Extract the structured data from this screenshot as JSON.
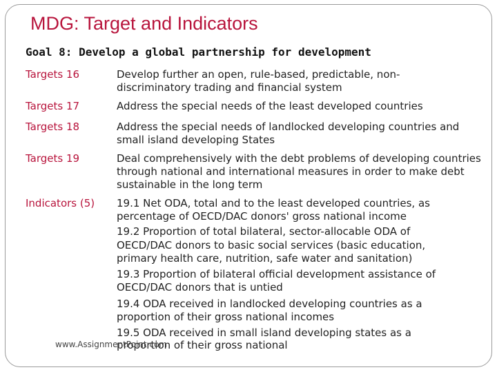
{
  "title": "MDG: Target and Indicators",
  "goal": "Goal 8: Develop a global partnership for development",
  "targets": [
    {
      "label": "Targets 16",
      "text": "Develop further an open, rule-based, predictable, non-discriminatory trading and financial system"
    },
    {
      "label": "Targets 17",
      "text": "Address the special needs of the least developed countries"
    },
    {
      "label": "Targets 18",
      "text": "Address the special needs of landlocked developing countries and small island developing States"
    },
    {
      "label": "Targets 19",
      "text": "Deal comprehensively with the debt problems of developing countries through national and international measures in order to make debt sustainable in the long term"
    }
  ],
  "indicators": {
    "label": "Indicators (5)",
    "lines": [
      "19.1 Net ODA, total and to the least developed countries, as",
      "percentage of OECD/DAC donors' gross national income",
      "19.2 Proportion of total bilateral, sector-allocable ODA of",
      "OECD/DAC donors to basic social services (basic education,",
      "primary health care, nutrition, safe water and sanitation)",
      "19.3 Proportion of bilateral official development assistance of",
      "OECD/DAC donors that is untied",
      "19.4 ODA received in landlocked developing countries as a",
      "proportion of their gross national incomes",
      "19.5 ODA received in small island developing states as a",
      "proportion of their gross national"
    ]
  },
  "footer": "www.AssignmentPoint.com"
}
